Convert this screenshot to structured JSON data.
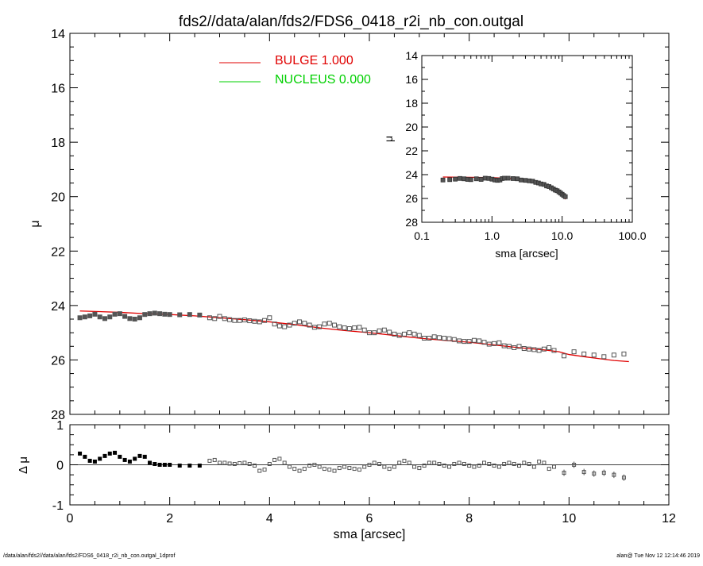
{
  "title": "fds2//data/alan/fds2/FDS6_0418_r2i_nb_con.outgal",
  "footer": {
    "left": "/data/alan/fds2//data/alan/fds2/FDS6_0418_r2i_nb_con.outgal_1dprof",
    "right": "alan@  Tue Nov 12 12:14:46 2019"
  },
  "colors": {
    "bulge": "#e00000",
    "nucleus": "#00d000",
    "points": "#555555",
    "axes": "#000000"
  },
  "chart_data": [
    {
      "id": "main",
      "type": "scatter",
      "ylabel": "μ",
      "xlim": [
        0,
        12
      ],
      "ylim": [
        28,
        14
      ],
      "y_inverted": true,
      "xticks": [],
      "yticks": [
        14,
        16,
        18,
        20,
        22,
        24,
        26,
        28
      ],
      "legend": {
        "placement": "top-center",
        "entries": [
          {
            "label": "BULGE  1.000",
            "color": "#e00000"
          },
          {
            "label": "NUCLEUS  0.000",
            "color": "#00d000"
          }
        ]
      },
      "observed": {
        "x": [
          0.2,
          0.3,
          0.4,
          0.5,
          0.6,
          0.7,
          0.8,
          0.9,
          1.0,
          1.1,
          1.2,
          1.3,
          1.4,
          1.5,
          1.6,
          1.7,
          1.8,
          1.9,
          2.0,
          2.2,
          2.4,
          2.6,
          2.8,
          2.9,
          3.0,
          3.1,
          3.2,
          3.3,
          3.4,
          3.5,
          3.6,
          3.7,
          3.8,
          3.9,
          4.0,
          4.1,
          4.2,
          4.3,
          4.4,
          4.5,
          4.6,
          4.7,
          4.8,
          4.9,
          5.0,
          5.1,
          5.2,
          5.3,
          5.4,
          5.5,
          5.6,
          5.7,
          5.8,
          5.9,
          6.0,
          6.1,
          6.2,
          6.3,
          6.4,
          6.5,
          6.6,
          6.7,
          6.8,
          6.9,
          7.0,
          7.1,
          7.2,
          7.3,
          7.4,
          7.5,
          7.6,
          7.7,
          7.8,
          7.9,
          8.0,
          8.1,
          8.2,
          8.3,
          8.4,
          8.5,
          8.6,
          8.7,
          8.8,
          8.9,
          9.0,
          9.1,
          9.2,
          9.3,
          9.4,
          9.5,
          9.6,
          9.7,
          9.9,
          10.1,
          10.3,
          10.5,
          10.7,
          10.9,
          11.1
        ],
        "y": [
          24.45,
          24.42,
          24.38,
          24.32,
          24.42,
          24.48,
          24.42,
          24.32,
          24.3,
          24.4,
          24.48,
          24.5,
          24.45,
          24.33,
          24.3,
          24.28,
          24.3,
          24.32,
          24.33,
          24.34,
          24.33,
          24.35,
          24.45,
          24.48,
          24.4,
          24.48,
          24.52,
          24.55,
          24.55,
          24.53,
          24.56,
          24.58,
          24.6,
          24.55,
          24.45,
          24.68,
          24.75,
          24.78,
          24.72,
          24.65,
          24.6,
          24.65,
          24.72,
          24.8,
          24.78,
          24.68,
          24.65,
          24.72,
          24.78,
          24.82,
          24.85,
          24.82,
          24.8,
          24.9,
          25.0,
          25.0,
          24.93,
          24.9,
          24.98,
          25.05,
          25.1,
          25.05,
          25.0,
          25.05,
          25.1,
          25.2,
          25.2,
          25.15,
          25.18,
          25.2,
          25.22,
          25.25,
          25.3,
          25.32,
          25.32,
          25.28,
          25.3,
          25.35,
          25.42,
          25.4,
          25.37,
          25.48,
          25.5,
          25.55,
          25.5,
          25.58,
          25.6,
          25.62,
          25.65,
          25.6,
          25.55,
          25.65,
          25.85,
          25.7,
          25.78,
          25.82,
          25.88,
          25.82,
          25.78
        ]
      },
      "bulge_model": {
        "x": [
          0.2,
          1.0,
          1.5,
          2.0,
          2.5,
          3.0,
          3.5,
          4.0,
          4.5,
          5.0,
          5.5,
          6.0,
          6.5,
          7.0,
          7.5,
          8.0,
          8.5,
          9.0,
          9.5,
          9.8,
          10.0,
          10.3,
          10.6,
          10.9,
          11.2
        ],
        "y": [
          24.2,
          24.25,
          24.3,
          24.33,
          24.38,
          24.45,
          24.52,
          24.6,
          24.7,
          24.82,
          24.92,
          25.0,
          25.1,
          25.2,
          25.28,
          25.35,
          25.45,
          25.55,
          25.63,
          25.7,
          25.8,
          25.88,
          25.95,
          26.02,
          26.06
        ]
      }
    },
    {
      "id": "residual",
      "type": "scatter",
      "xlabel": "sma [arcsec]",
      "ylabel": "Δ μ",
      "xlim": [
        0,
        12
      ],
      "ylim": [
        -1,
        1
      ],
      "xticks": [
        0,
        2,
        4,
        6,
        8,
        10,
        12
      ],
      "yticks": [
        -1,
        0,
        1
      ],
      "reference_line": 0,
      "x": [
        0.2,
        0.3,
        0.4,
        0.5,
        0.6,
        0.7,
        0.8,
        0.9,
        1.0,
        1.1,
        1.2,
        1.3,
        1.4,
        1.5,
        1.6,
        1.7,
        1.8,
        1.9,
        2.0,
        2.2,
        2.4,
        2.6,
        2.8,
        2.9,
        3.0,
        3.1,
        3.2,
        3.3,
        3.4,
        3.5,
        3.6,
        3.7,
        3.8,
        3.9,
        4.0,
        4.1,
        4.2,
        4.3,
        4.4,
        4.5,
        4.6,
        4.7,
        4.8,
        4.9,
        5.0,
        5.1,
        5.2,
        5.3,
        5.4,
        5.5,
        5.6,
        5.7,
        5.8,
        5.9,
        6.0,
        6.1,
        6.2,
        6.3,
        6.4,
        6.5,
        6.6,
        6.7,
        6.8,
        6.9,
        7.0,
        7.1,
        7.2,
        7.3,
        7.4,
        7.5,
        7.6,
        7.7,
        7.8,
        7.9,
        8.0,
        8.1,
        8.2,
        8.3,
        8.4,
        8.5,
        8.6,
        8.7,
        8.8,
        8.9,
        9.0,
        9.1,
        9.2,
        9.3,
        9.4,
        9.5,
        9.6,
        9.7,
        9.9,
        10.1,
        10.3,
        10.5,
        10.7,
        10.9,
        11.1
      ],
      "y": [
        0.28,
        0.2,
        0.1,
        0.08,
        0.15,
        0.22,
        0.28,
        0.3,
        0.2,
        0.12,
        0.08,
        0.15,
        0.22,
        0.2,
        0.05,
        0.02,
        0.0,
        0.0,
        0.0,
        -0.02,
        -0.02,
        -0.02,
        0.1,
        0.12,
        0.05,
        0.05,
        0.03,
        0.02,
        0.04,
        0.05,
        0.02,
        -0.02,
        -0.15,
        -0.12,
        0.02,
        0.12,
        0.15,
        0.05,
        -0.05,
        -0.1,
        -0.15,
        -0.1,
        -0.02,
        0.0,
        -0.05,
        -0.1,
        -0.12,
        -0.15,
        -0.08,
        -0.05,
        -0.08,
        -0.1,
        -0.12,
        -0.05,
        0.0,
        0.05,
        0.02,
        -0.05,
        -0.1,
        -0.05,
        0.05,
        0.1,
        0.05,
        -0.05,
        -0.08,
        -0.02,
        0.05,
        0.05,
        0.02,
        -0.02,
        -0.05,
        0.02,
        0.05,
        0.02,
        -0.02,
        -0.05,
        -0.02,
        0.05,
        0.02,
        -0.02,
        -0.05,
        0.02,
        0.05,
        0.02,
        -0.02,
        0.05,
        0.02,
        -0.05,
        0.08,
        0.05,
        -0.1,
        -0.05,
        -0.2,
        0.0,
        -0.18,
        -0.22,
        -0.2,
        -0.25,
        -0.32
      ]
    },
    {
      "id": "inset",
      "type": "scatter",
      "xlabel": "sma [arcsec]",
      "ylabel": "μ",
      "xscale": "log",
      "xlim": [
        0.1,
        100
      ],
      "ylim": [
        28,
        14
      ],
      "y_inverted": true,
      "xticks": [
        "0.1",
        "1.0",
        "10.0",
        "100.0"
      ],
      "yticks": [
        14,
        16,
        18,
        20,
        22,
        24,
        26,
        28
      ],
      "observed": {
        "x": [
          0.2,
          0.25,
          0.3,
          0.35,
          0.4,
          0.45,
          0.5,
          0.6,
          0.7,
          0.8,
          0.9,
          1.0,
          1.1,
          1.2,
          1.3,
          1.4,
          1.5,
          1.7,
          2.0,
          2.3,
          2.6,
          3.0,
          3.4,
          3.8,
          4.2,
          4.6,
          5.0,
          5.5,
          6.0,
          6.5,
          7.0,
          7.5,
          8.0,
          8.5,
          9.0,
          9.5,
          10.0,
          10.5,
          11.1
        ],
        "y": [
          24.45,
          24.42,
          24.38,
          24.32,
          24.35,
          24.4,
          24.42,
          24.35,
          24.4,
          24.3,
          24.32,
          24.38,
          24.45,
          24.48,
          24.45,
          24.33,
          24.3,
          24.3,
          24.33,
          24.35,
          24.45,
          24.48,
          24.52,
          24.55,
          24.65,
          24.7,
          24.78,
          24.82,
          24.95,
          25.0,
          25.1,
          25.2,
          25.3,
          25.35,
          25.45,
          25.55,
          25.65,
          25.75,
          25.85
        ]
      },
      "bulge_model": {
        "x": [
          0.2,
          0.5,
          1.0,
          2.0,
          3.0,
          4.0,
          5.0,
          6.0,
          7.0,
          8.0,
          9.0,
          10.0,
          11.2
        ],
        "y": [
          24.2,
          24.22,
          24.25,
          24.33,
          24.45,
          24.6,
          24.82,
          25.0,
          25.2,
          25.35,
          25.55,
          25.8,
          26.06
        ]
      }
    }
  ]
}
